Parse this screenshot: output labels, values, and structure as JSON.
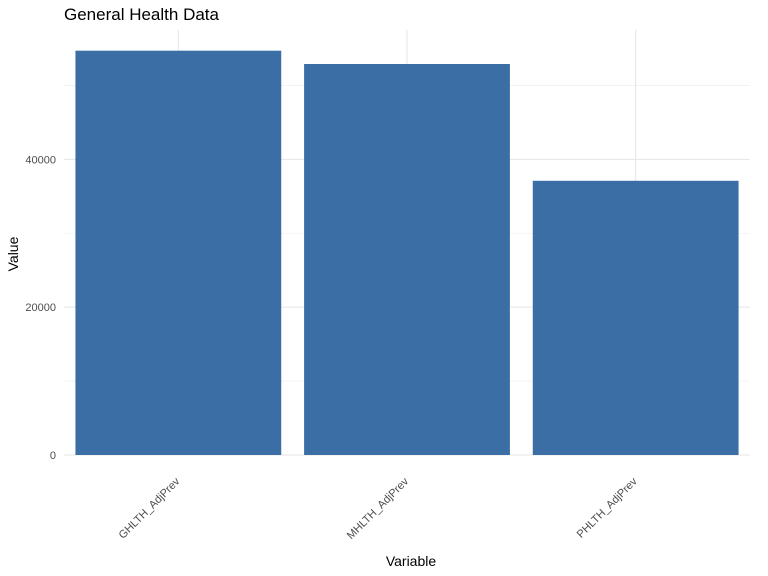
{
  "chart_data": {
    "type": "bar",
    "title": "General Health Data",
    "xlabel": "Variable",
    "ylabel": "Value",
    "categories": [
      "GHLTH_AdjPrev",
      "MHLTH_AdjPrev",
      "PHLTH_AdjPrev"
    ],
    "values": [
      54700,
      52900,
      37100
    ],
    "ylim": [
      0,
      57500
    ],
    "yticks": [
      0,
      20000,
      40000
    ],
    "yticks_minor": [
      10000,
      30000,
      50000
    ],
    "ytick_labels": [
      "0",
      "20000",
      "40000"
    ],
    "grid": true,
    "legend": "none",
    "bar_color": "#3a6ea5",
    "x_tick_rotation_deg": 45
  }
}
